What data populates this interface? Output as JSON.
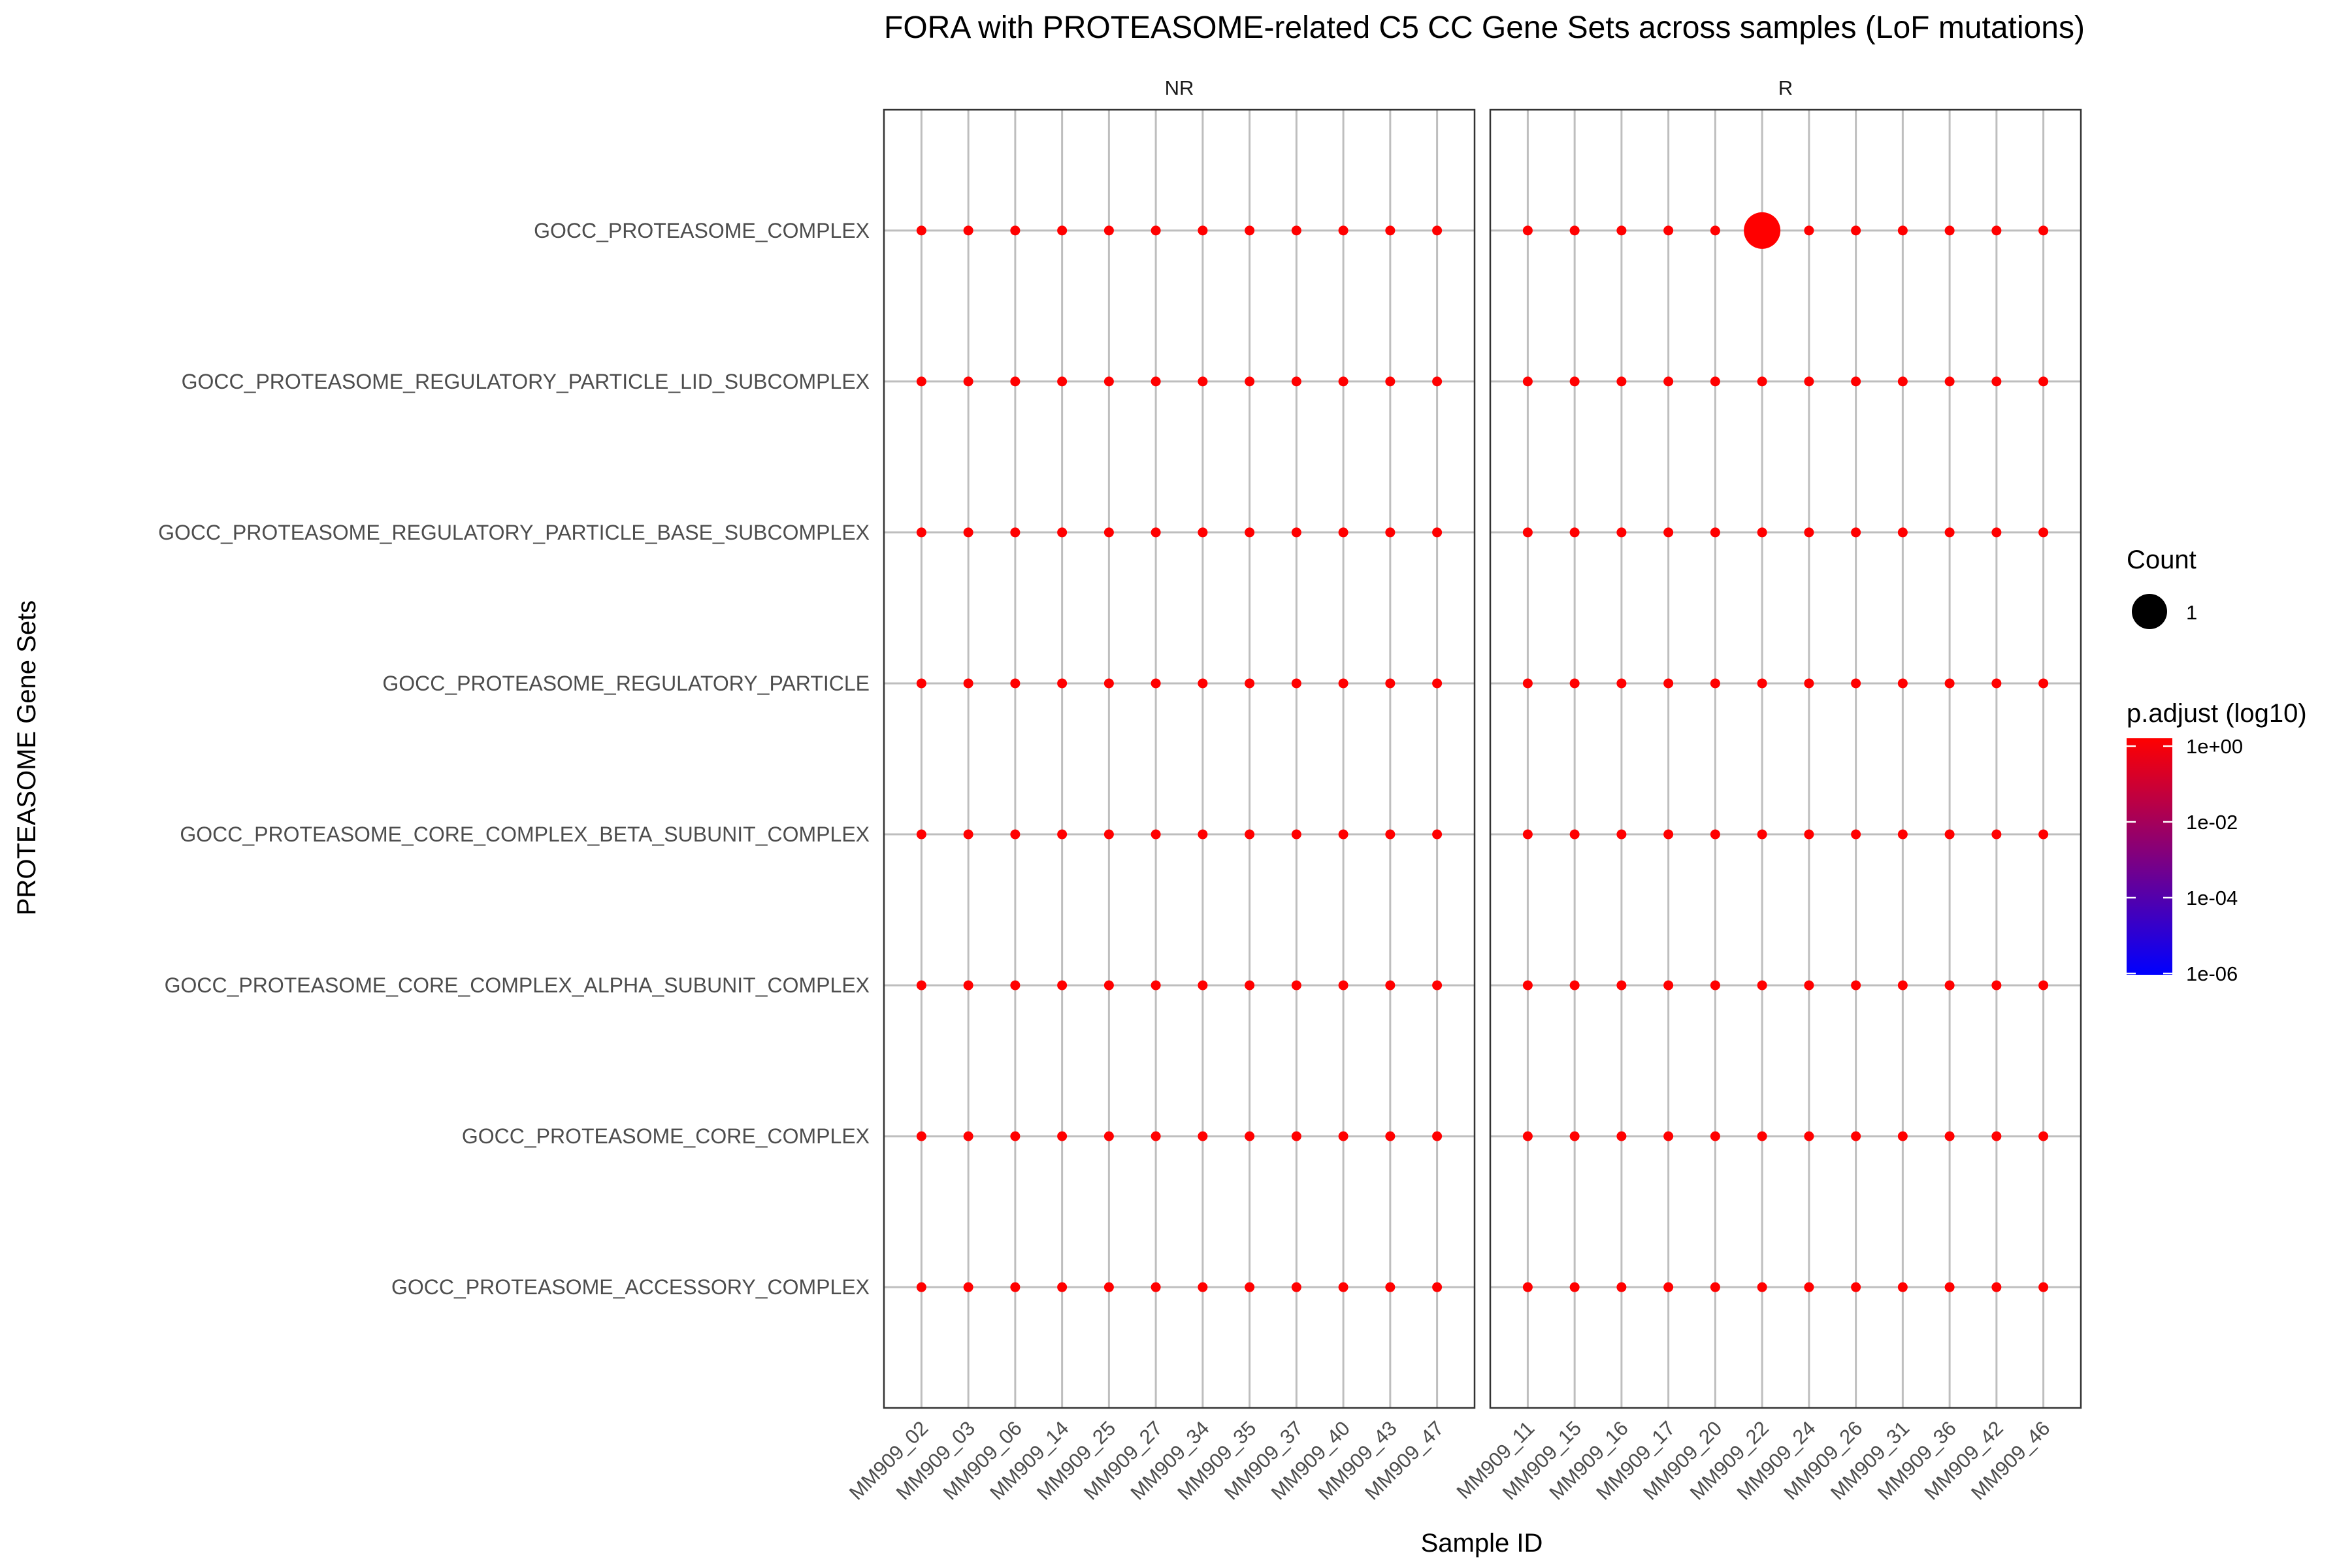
{
  "chart_data": {
    "type": "scatter",
    "title": "FORA with PROTEASOME-related C5 CC Gene Sets across samples (LoF mutations)",
    "xlabel": "Sample ID",
    "ylabel": "PROTEASOME Gene Sets",
    "grid": true,
    "legend_position": "right",
    "point_color": "#ff0000",
    "gene_sets": [
      "GOCC_PROTEASOME_COMPLEX",
      "GOCC_PROTEASOME_REGULATORY_PARTICLE_LID_SUBCOMPLEX",
      "GOCC_PROTEASOME_REGULATORY_PARTICLE_BASE_SUBCOMPLEX",
      "GOCC_PROTEASOME_REGULATORY_PARTICLE",
      "GOCC_PROTEASOME_CORE_COMPLEX_BETA_SUBUNIT_COMPLEX",
      "GOCC_PROTEASOME_CORE_COMPLEX_ALPHA_SUBUNIT_COMPLEX",
      "GOCC_PROTEASOME_CORE_COMPLEX",
      "GOCC_PROTEASOME_ACCESSORY_COMPLEX"
    ],
    "panels": [
      {
        "name": "NR",
        "samples": [
          "MM909_02",
          "MM909_03",
          "MM909_06",
          "MM909_14",
          "MM909_25",
          "MM909_27",
          "MM909_34",
          "MM909_35",
          "MM909_37",
          "MM909_40",
          "MM909_43",
          "MM909_47"
        ]
      },
      {
        "name": "R",
        "samples": [
          "MM909_11",
          "MM909_15",
          "MM909_16",
          "MM909_17",
          "MM909_20",
          "MM909_22",
          "MM909_24",
          "MM909_26",
          "MM909_31",
          "MM909_36",
          "MM909_42",
          "MM909_46"
        ]
      }
    ],
    "highlight": {
      "panel": "R",
      "sample": "MM909_22",
      "gene_set": "GOCC_PROTEASOME_COMPLEX",
      "count": 1,
      "p_adjust": 1
    },
    "legend": {
      "size_title": "Count",
      "size_label": "1",
      "color_title": "p.adjust (log10)",
      "color_scale": "log10",
      "color_labels": [
        "1e+00",
        "1e-02",
        "1e-04",
        "1e-06"
      ],
      "color_low": "#0000ff",
      "color_high": "#ff0000"
    }
  }
}
